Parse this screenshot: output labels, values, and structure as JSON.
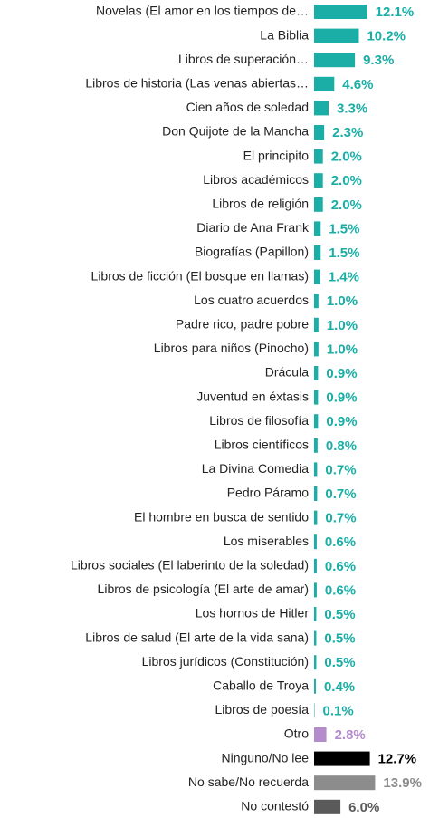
{
  "chart_data": {
    "type": "bar",
    "orientation": "horizontal",
    "categories": [
      "Novelas (El amor en los tiempos de…",
      "La Biblia",
      "Libros de superación…",
      "Libros de historia (Las venas abiertas…",
      "Cien años de soledad",
      "Don Quijote de la Mancha",
      "El principito",
      "Libros académicos",
      "Libros de religión",
      "Diario de Ana Frank",
      "Biografías (Papillon)",
      "Libros de ficción (El bosque en llamas)",
      "Los cuatro acuerdos",
      "Padre rico, padre pobre",
      "Libros para niños (Pinocho)",
      "Drácula",
      "Juventud en éxtasis",
      "Libros de filosofía",
      "Libros científicos",
      "La Divina Comedia",
      "Pedro Páramo",
      "El hombre en busca de sentido",
      "Los miserables",
      "Libros sociales (El laberinto de la soledad)",
      "Libros de psicología (El arte de amar)",
      "Los hornos de Hitler",
      "Libros de salud (El arte de la vida sana)",
      "Libros jurídicos (Constitución)",
      "Caballo de Troya",
      "Libros de poesía",
      "Otro",
      "Ninguno/No lee",
      "No sabe/No recuerda",
      "No contestó"
    ],
    "values": [
      12.1,
      10.2,
      9.3,
      4.6,
      3.3,
      2.3,
      2.0,
      2.0,
      2.0,
      1.5,
      1.5,
      1.4,
      1.0,
      1.0,
      1.0,
      0.9,
      0.9,
      0.9,
      0.8,
      0.7,
      0.7,
      0.7,
      0.6,
      0.6,
      0.6,
      0.5,
      0.5,
      0.5,
      0.4,
      0.1,
      2.8,
      12.7,
      13.9,
      6.0
    ],
    "value_labels": [
      "12.1%",
      "10.2%",
      "9.3%",
      "4.6%",
      "3.3%",
      "2.3%",
      "2.0%",
      "2.0%",
      "2.0%",
      "1.5%",
      "1.5%",
      "1.4%",
      "1.0%",
      "1.0%",
      "1.0%",
      "0.9%",
      "0.9%",
      "0.9%",
      "0.8%",
      "0.7%",
      "0.7%",
      "0.7%",
      "0.6%",
      "0.6%",
      "0.6%",
      "0.5%",
      "0.5%",
      "0.5%",
      "0.4%",
      "0.1%",
      "2.8%",
      "12.7%",
      "13.9%",
      "6.0%"
    ],
    "colors": [
      "#1aaea6",
      "#1aaea6",
      "#1aaea6",
      "#1aaea6",
      "#1aaea6",
      "#1aaea6",
      "#1aaea6",
      "#1aaea6",
      "#1aaea6",
      "#1aaea6",
      "#1aaea6",
      "#1aaea6",
      "#1aaea6",
      "#1aaea6",
      "#1aaea6",
      "#1aaea6",
      "#1aaea6",
      "#1aaea6",
      "#1aaea6",
      "#1aaea6",
      "#1aaea6",
      "#1aaea6",
      "#1aaea6",
      "#1aaea6",
      "#1aaea6",
      "#1aaea6",
      "#1aaea6",
      "#1aaea6",
      "#1aaea6",
      "#1aaea6",
      "#b48ccc",
      "#000000",
      "#8c8c8c",
      "#5a5a5a"
    ]
  }
}
